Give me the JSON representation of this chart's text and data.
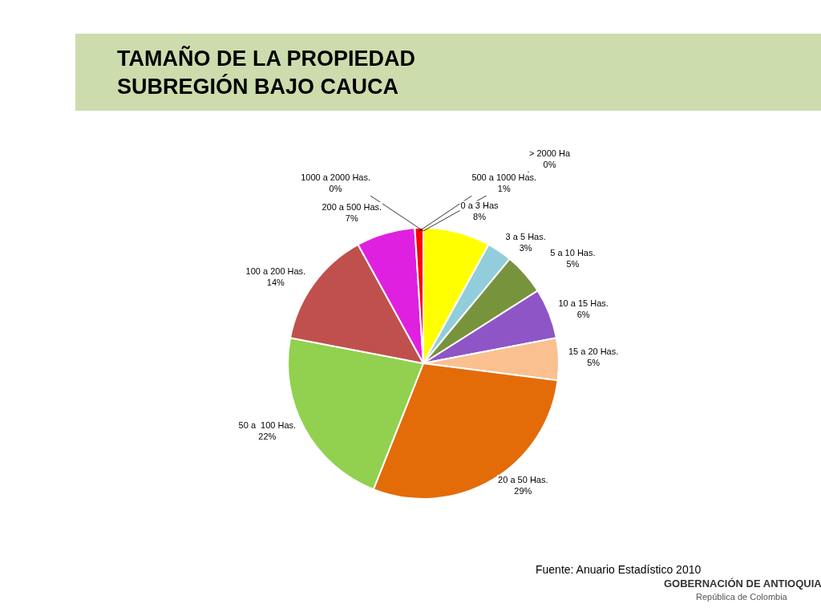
{
  "chart_data": {
    "type": "pie",
    "title": "TAMAÑO DE LA PROPIEDAD\nSUBREGIÓN BAJO CAUCA",
    "categories": [
      "0 a 3 Has",
      "3 a 5 Has.",
      "5 a 10 Has.",
      "10 a 15 Has.",
      "15 a 20 Has.",
      "20 a 50 Has.",
      "50 a  100 Has.",
      "100 a 200 Has.",
      "200 a 500 Has.",
      "500 a 1000 Has.",
      "1000 a 2000 Has.",
      "> 2000 Ha"
    ],
    "values": [
      8,
      3,
      5,
      6,
      5,
      29,
      22,
      14,
      7,
      1,
      0,
      0
    ],
    "value_labels": [
      "8%",
      "3%",
      "5%",
      "6%",
      "5%",
      "29%",
      "22%",
      "14%",
      "7%",
      "1%",
      "0%",
      "0%"
    ],
    "colors": [
      "#ffff00",
      "#92cddc",
      "#77933c",
      "#8e55c6",
      "#fac090",
      "#e36c09",
      "#92d050",
      "#c0504d",
      "#e020e0",
      "#ff0000",
      "#7f7f7f",
      "#4f81bd"
    ],
    "annotations": [
      "Fuente: Anuario Estadístico 2010",
      "GOBERNACIÓN DE ANTIOQUIA",
      "República de Colombia"
    ],
    "legend": false
  }
}
